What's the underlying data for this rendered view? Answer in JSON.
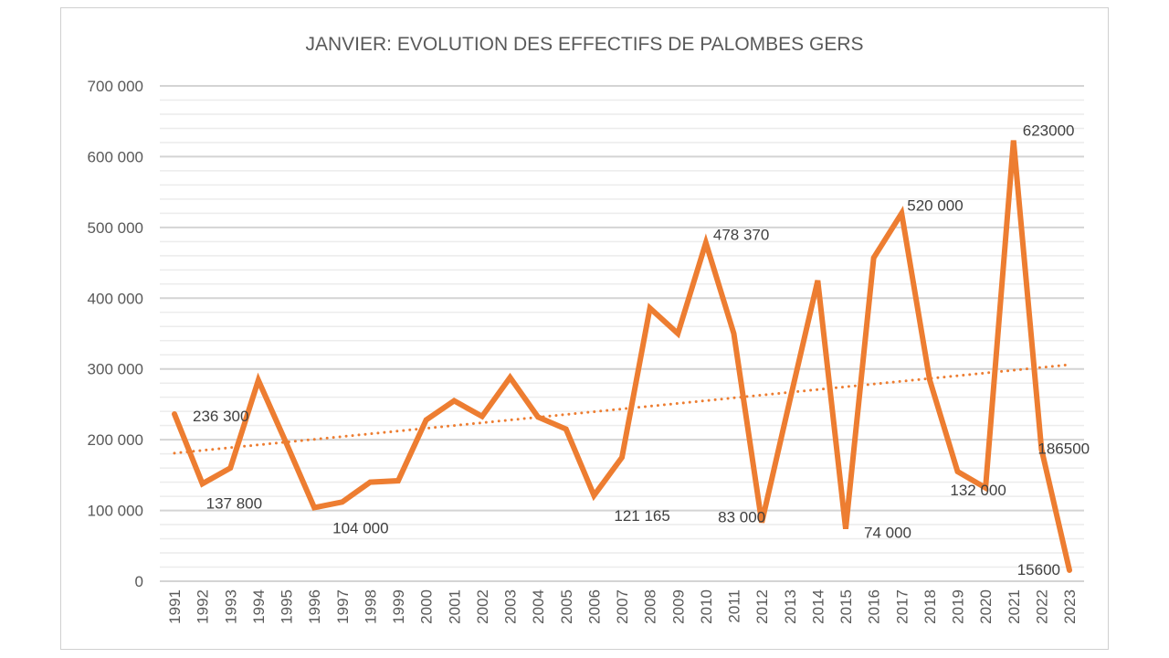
{
  "chart_data": {
    "type": "line",
    "title_bold": "JANVIER",
    "title_rest": ": EVOLUTION DES EFFECTIFS DE PALOMBES GERS",
    "xlabel": "",
    "ylabel": "",
    "ylim": [
      0,
      700000
    ],
    "y_ticks": [
      0,
      100000,
      200000,
      300000,
      400000,
      500000,
      600000,
      700000
    ],
    "y_tick_labels": [
      "0",
      "100 000",
      "200 000",
      "300 000",
      "400 000",
      "500 000",
      "600 000",
      "700 000"
    ],
    "grid": true,
    "minor_grid_step": 20000,
    "categories": [
      "1991",
      "1992",
      "1993",
      "1994",
      "1995",
      "1996",
      "1997",
      "1998",
      "1999",
      "2000",
      "2001",
      "2002",
      "2003",
      "2004",
      "2005",
      "2006",
      "2007",
      "2008",
      "2009",
      "2010",
      "2011",
      "2012",
      "2013",
      "2014",
      "2015",
      "2016",
      "2017",
      "2018",
      "2019",
      "2020",
      "2021",
      "2022",
      "2023"
    ],
    "series": [
      {
        "name": "Effectifs",
        "color": "#ED7D31",
        "values": [
          236300,
          137800,
          160000,
          284000,
          195000,
          104000,
          112000,
          140000,
          142000,
          228000,
          255000,
          233000,
          288000,
          232000,
          215000,
          121165,
          175000,
          386000,
          350000,
          478370,
          350000,
          83000,
          255000,
          425000,
          74000,
          457000,
          520000,
          285000,
          155000,
          132000,
          623000,
          186500,
          15600
        ]
      }
    ],
    "trendline": {
      "type": "linear",
      "style": "dotted",
      "color": "#ED7D31",
      "start": 181000,
      "end": 306000
    },
    "data_labels": [
      {
        "index": 0,
        "text": "236 300"
      },
      {
        "index": 1,
        "text": "137 800"
      },
      {
        "index": 5,
        "text": "104 000"
      },
      {
        "index": 15,
        "text": "121 165"
      },
      {
        "index": 19,
        "text": "478 370"
      },
      {
        "index": 21,
        "text": "83 000"
      },
      {
        "index": 24,
        "text": "74 000"
      },
      {
        "index": 26,
        "text": "520 000"
      },
      {
        "index": 29,
        "text": "132 000"
      },
      {
        "index": 30,
        "text": "623000"
      },
      {
        "index": 31,
        "text": "186500"
      },
      {
        "index": 32,
        "text": "15600"
      }
    ]
  }
}
